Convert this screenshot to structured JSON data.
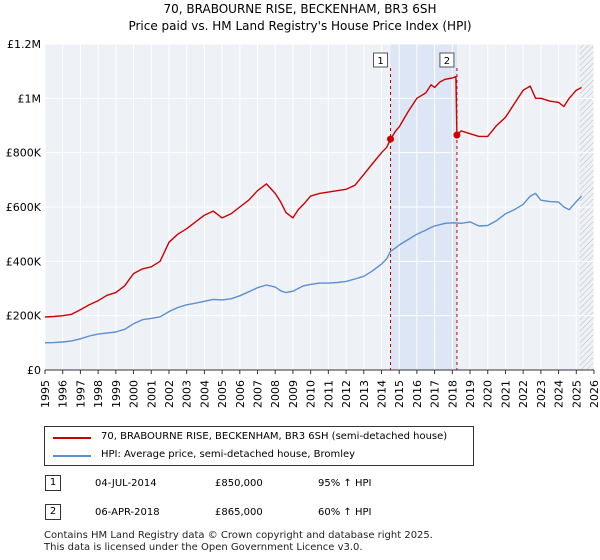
{
  "title_line1": "70, BRABOURNE RISE, BECKENHAM, BR3 6SH",
  "title_line2": "Price paid vs. HM Land Registry's House Price Index (HPI)",
  "chart_data": {
    "type": "line",
    "xlim": [
      1995,
      2026
    ],
    "ylim": [
      0,
      1200000
    ],
    "y_ticks": [
      0,
      200000,
      400000,
      600000,
      800000,
      1000000,
      1200000
    ],
    "y_tick_labels": [
      "£0",
      "£200K",
      "£400K",
      "£600K",
      "£800K",
      "£1M",
      "£1.2M"
    ],
    "x_ticks": [
      1995,
      1996,
      1997,
      1998,
      1999,
      2000,
      2001,
      2002,
      2003,
      2004,
      2005,
      2006,
      2007,
      2008,
      2009,
      2010,
      2011,
      2012,
      2013,
      2014,
      2015,
      2016,
      2017,
      2018,
      2019,
      2020,
      2021,
      2022,
      2023,
      2024,
      2025,
      2026
    ],
    "x_tick_labels": [
      "1995",
      "1996",
      "1997",
      "1998",
      "1999",
      "2000",
      "2001",
      "2002",
      "2003",
      "2004",
      "2005",
      "2006",
      "2007",
      "2008",
      "2009",
      "2010",
      "2011",
      "2012",
      "2013",
      "2014",
      "2015",
      "2016",
      "2017",
      "2018",
      "2019",
      "2020",
      "2021",
      "2022",
      "2023",
      "2024",
      "2025",
      "2026"
    ],
    "grid": true,
    "shaded_span": [
      2014.51,
      2018.26
    ],
    "forecast_hatch_from": 2025.2,
    "series": [
      {
        "name": "70, BRABOURNE RISE, BECKENHAM, BR3 6SH (semi-detached house)",
        "color": "#cc0000",
        "x": [
          1995,
          1995.5,
          1996,
          1996.5,
          1997,
          1997.5,
          1998,
          1998.5,
          1999,
          1999.5,
          2000,
          2000.5,
          2001,
          2001.5,
          2002,
          2002.5,
          2003,
          2003.5,
          2004,
          2004.5,
          2005,
          2005.5,
          2006,
          2006.5,
          2007,
          2007.5,
          2008,
          2008.3,
          2008.6,
          2009,
          2009.3,
          2009.6,
          2010,
          2010.5,
          2011,
          2011.5,
          2012,
          2012.5,
          2013,
          2013.5,
          2014,
          2014.3,
          2014.51,
          2014.8,
          2015,
          2015.5,
          2016,
          2016.5,
          2016.8,
          2017,
          2017.3,
          2017.6,
          2018,
          2018.2,
          2018.26,
          2018.5,
          2019,
          2019.5,
          2020,
          2020.5,
          2021,
          2021.5,
          2022,
          2022.4,
          2022.7,
          2023,
          2023.5,
          2024,
          2024.3,
          2024.6,
          2025,
          2025.3
        ],
        "y": [
          195000,
          197000,
          200000,
          205000,
          222000,
          240000,
          255000,
          275000,
          285000,
          310000,
          355000,
          372000,
          380000,
          400000,
          470000,
          500000,
          520000,
          545000,
          570000,
          585000,
          560000,
          575000,
          600000,
          625000,
          660000,
          685000,
          650000,
          620000,
          580000,
          560000,
          590000,
          610000,
          640000,
          650000,
          655000,
          660000,
          665000,
          680000,
          720000,
          760000,
          800000,
          820000,
          850000,
          880000,
          895000,
          950000,
          1000000,
          1020000,
          1050000,
          1040000,
          1060000,
          1070000,
          1075000,
          1080000,
          865000,
          880000,
          870000,
          860000,
          860000,
          900000,
          930000,
          980000,
          1030000,
          1045000,
          1000000,
          1000000,
          990000,
          985000,
          970000,
          1000000,
          1030000,
          1040000
        ]
      },
      {
        "name": "HPI: Average price, semi-detached house, Bromley",
        "color": "#5b8fd1",
        "x": [
          1995,
          1995.5,
          1996,
          1996.5,
          1997,
          1997.5,
          1998,
          1998.5,
          1999,
          1999.5,
          2000,
          2000.5,
          2001,
          2001.5,
          2002,
          2002.5,
          2003,
          2003.5,
          2004,
          2004.5,
          2005,
          2005.5,
          2006,
          2006.5,
          2007,
          2007.5,
          2008,
          2008.3,
          2008.6,
          2009,
          2009.3,
          2009.6,
          2010,
          2010.5,
          2011,
          2011.5,
          2012,
          2012.5,
          2013,
          2013.5,
          2014,
          2014.3,
          2014.51,
          2014.8,
          2015,
          2015.5,
          2016,
          2016.5,
          2016.8,
          2017,
          2017.3,
          2017.6,
          2018,
          2018.26,
          2018.5,
          2019,
          2019.5,
          2020,
          2020.5,
          2021,
          2021.5,
          2022,
          2022.4,
          2022.7,
          2023,
          2023.5,
          2024,
          2024.3,
          2024.6,
          2025,
          2025.3
        ],
        "y": [
          100000,
          101000,
          103000,
          107000,
          115000,
          125000,
          132000,
          136000,
          140000,
          150000,
          170000,
          185000,
          190000,
          196000,
          215000,
          230000,
          240000,
          246000,
          253000,
          260000,
          258000,
          262000,
          273000,
          288000,
          303000,
          313000,
          305000,
          292000,
          285000,
          290000,
          300000,
          310000,
          315000,
          320000,
          320000,
          322000,
          326000,
          335000,
          345000,
          365000,
          390000,
          410000,
          437000,
          450000,
          460000,
          480000,
          500000,
          515000,
          525000,
          530000,
          535000,
          540000,
          542000,
          541000,
          540000,
          545000,
          530000,
          532000,
          550000,
          575000,
          590000,
          610000,
          640000,
          650000,
          625000,
          620000,
          618000,
          600000,
          590000,
          620000,
          640000
        ]
      }
    ],
    "events": [
      {
        "label": "1",
        "x": 2014.51,
        "y": 850000,
        "date": "04-JUL-2014",
        "price": "£850,000",
        "hpi": "95% ↑ HPI"
      },
      {
        "label": "2",
        "x": 2018.26,
        "y": 865000,
        "date": "06-APR-2018",
        "price": "£865,000",
        "hpi": "60% ↑ HPI"
      }
    ]
  },
  "legend": {
    "property_label": "70, BRABOURNE RISE, BECKENHAM, BR3 6SH (semi-detached house)",
    "hpi_label": "HPI: Average price, semi-detached house, Bromley",
    "property_color": "#cc0000",
    "hpi_color": "#5b8fd1"
  },
  "footer_line1": "Contains HM Land Registry data © Crown copyright and database right 2025.",
  "footer_line2": "This data is licensed under the Open Government Licence v3.0."
}
